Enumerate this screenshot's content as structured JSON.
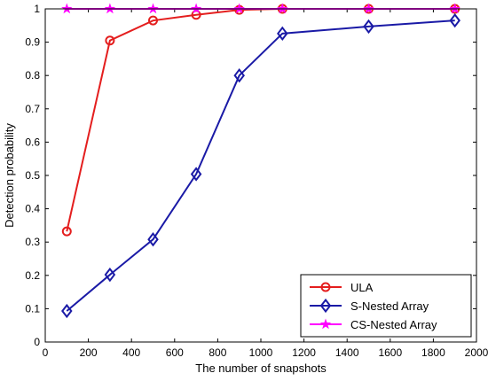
{
  "chart_data": {
    "type": "line",
    "xlabel": "The number of snapshots",
    "ylabel": "Detection probability",
    "xlim": [
      0,
      2000
    ],
    "ylim": [
      0,
      1
    ],
    "xticks": [
      "0",
      "200",
      "400",
      "600",
      "800",
      "1000",
      "1200",
      "1400",
      "1600",
      "1800",
      "2000"
    ],
    "yticks": [
      "0",
      "0.1",
      "0.2",
      "0.3",
      "0.4",
      "0.5",
      "0.6",
      "0.7",
      "0.8",
      "0.9",
      "1"
    ],
    "grid": false,
    "legend_position": "bottom-right",
    "series": [
      {
        "name": "ULA",
        "color": "#e41e1e",
        "marker": "circle",
        "x": [
          100,
          300,
          500,
          700,
          900,
          1100,
          1500,
          1900
        ],
        "y": [
          0.332,
          0.905,
          0.965,
          0.982,
          0.997,
          1.0,
          1.0,
          1.0
        ]
      },
      {
        "name": "S-Nested Array",
        "color": "#1a1aa6",
        "marker": "diamond",
        "x": [
          100,
          300,
          500,
          700,
          900,
          1100,
          1500,
          1900
        ],
        "y": [
          0.093,
          0.202,
          0.308,
          0.504,
          0.8,
          0.926,
          0.947,
          0.965
        ]
      },
      {
        "name": "CS-Nested Array",
        "color": "#ff00ff",
        "marker": "star",
        "x": [
          100,
          300,
          500,
          700,
          900,
          1100,
          1500,
          1900
        ],
        "y": [
          1.0,
          1.0,
          1.0,
          1.0,
          1.0,
          1.0,
          1.0,
          1.0
        ]
      }
    ]
  }
}
